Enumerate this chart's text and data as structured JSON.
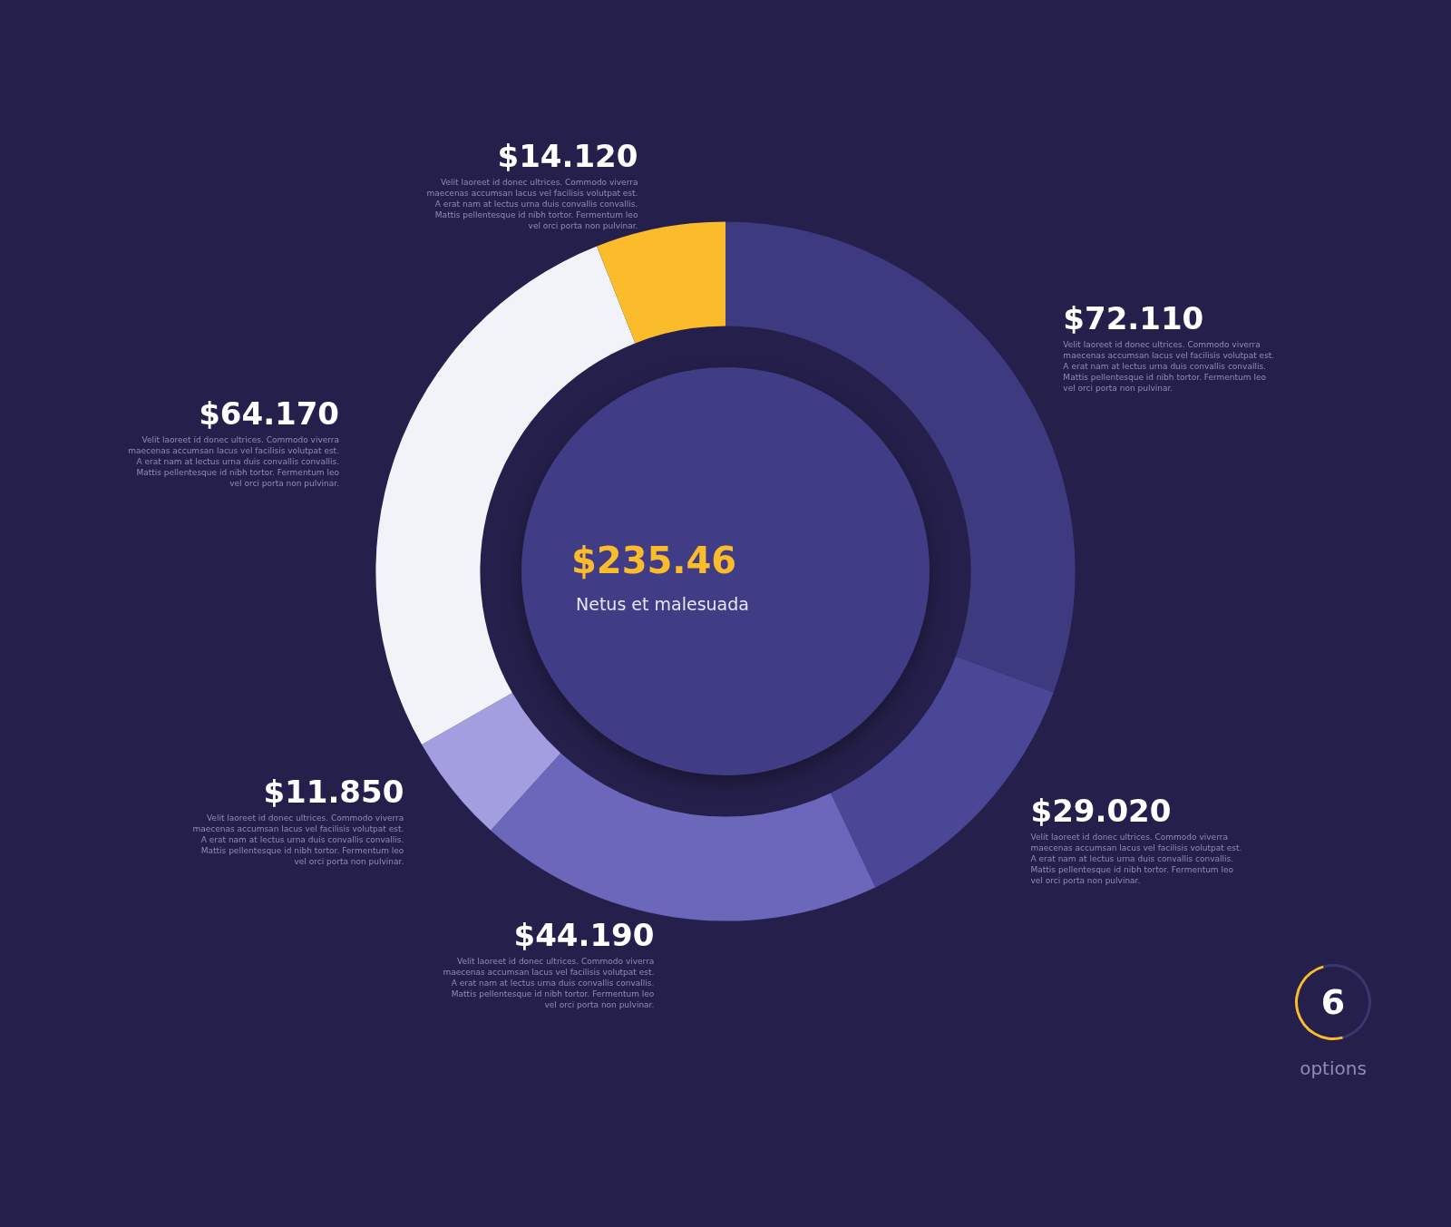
{
  "chart_data": {
    "type": "donut",
    "categories": [
      null,
      null,
      null,
      null,
      null,
      null
    ],
    "values": [
      72.11,
      29.02,
      44.19,
      11.85,
      64.17,
      14.12
    ],
    "colors": [
      "#3d3a80",
      "#4a4896",
      "#6b67bb",
      "#a39ee0",
      "#f2f3f8",
      "#fbbc2c"
    ],
    "value_labels": [
      "$72.110",
      "$29.020",
      "$44.190",
      "$11.850",
      "$64.170",
      "$14.120"
    ],
    "annotations": [
      "Velit laoreet id donec ultrices. Commodo viverra maecenas accumsan lacus vel facilisis volutpat est. A erat nam at lectus urna duis convallis convallis. Mattis pellentesque id nibh tortor. Fermentum leo vel orci porta non pulvinar.",
      "Velit laoreet id donec ultrices. Commodo viverra maecenas accumsan lacus vel facilisis volutpat est. A erat nam at lectus urna duis convallis convallis. Mattis pellentesque id nibh tortor. Fermentum leo vel orci porta non pulvinar.",
      "Velit laoreet id donec ultrices. Commodo viverra maecenas accumsan lacus vel facilisis volutpat est. A erat nam at lectus urna duis convallis convallis. Mattis pellentesque id nibh tortor. Fermentum leo vel orci porta non pulvinar.",
      "Velit laoreet id donec ultrices. Commodo viverra maecenas accumsan lacus vel facilisis volutpat est. A erat nam at lectus urna duis convallis convallis. Mattis pellentesque id nibh tortor. Fermentum leo vel orci porta non pulvinar.",
      "Velit laoreet id donec ultrices. Commodo viverra maecenas accumsan lacus vel facilisis volutpat est. A erat nam at lectus urna duis convallis convallis. Mattis pellentesque id nibh tortor. Fermentum leo vel orci porta non pulvinar.",
      "Velit laoreet id donec ultrices. Commodo viverra maecenas accumsan lacus vel facilisis volutpat est. A erat nam at lectus urna duis convallis convallis. Mattis pellentesque id nibh tortor. Fermentum leo vel orci porta non pulvinar.",
      "$235.46",
      "Netus et malesuada",
      "6",
      "options"
    ]
  }
}
